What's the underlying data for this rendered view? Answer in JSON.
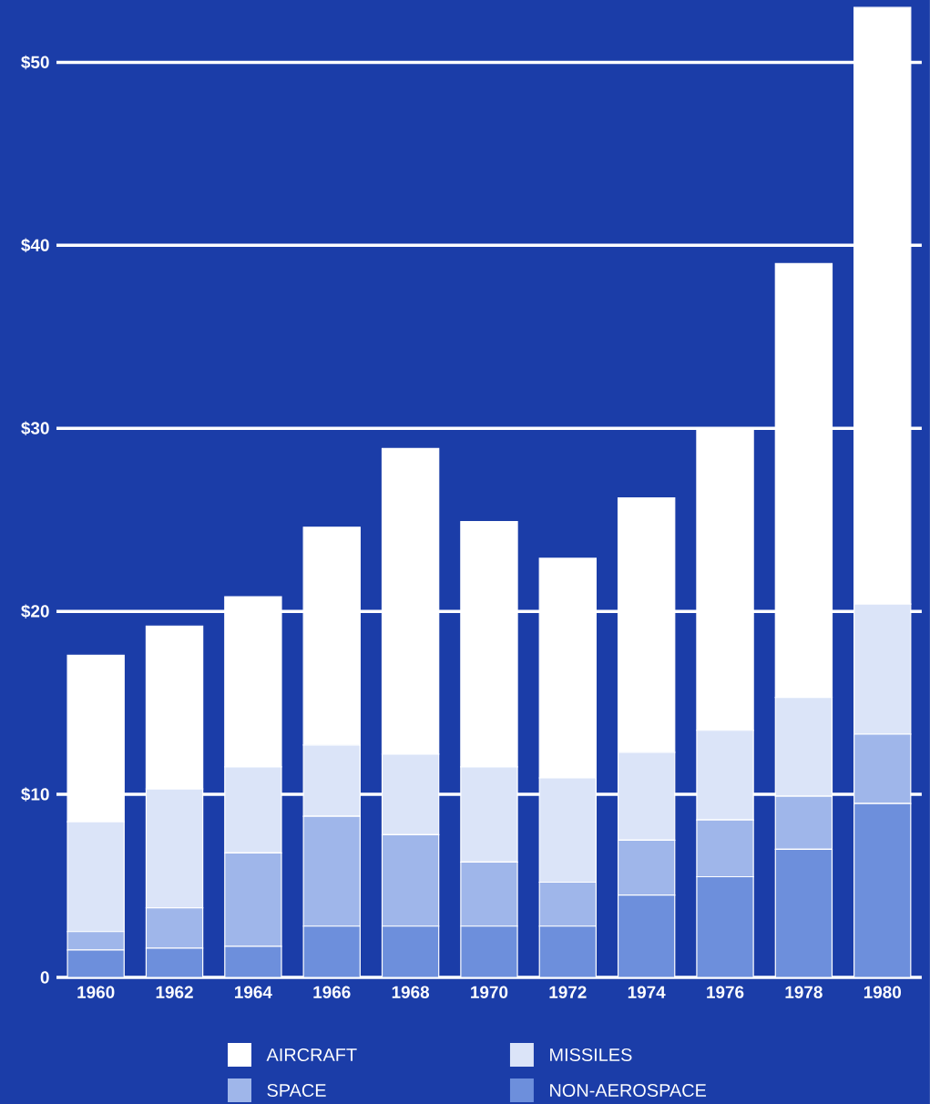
{
  "chart_data": {
    "type": "bar",
    "stacked": true,
    "categories": [
      "1960",
      "1962",
      "1964",
      "1966",
      "1968",
      "1970",
      "1972",
      "1974",
      "1976",
      "1978",
      "1980"
    ],
    "series": [
      {
        "name": "NON-AEROSPACE",
        "color": "#6d8fdc",
        "values": [
          1.5,
          1.6,
          1.7,
          2.8,
          2.8,
          2.8,
          2.8,
          4.5,
          5.5,
          7.0,
          9.5
        ]
      },
      {
        "name": "SPACE",
        "color": "#9fb6ea",
        "values": [
          1.0,
          2.2,
          5.1,
          6.0,
          5.0,
          3.5,
          2.4,
          3.0,
          3.1,
          2.9,
          3.8
        ]
      },
      {
        "name": "MISSILES",
        "color": "#dbe4f8",
        "values": [
          6.0,
          6.5,
          4.7,
          3.9,
          4.4,
          5.2,
          5.7,
          4.8,
          4.9,
          5.4,
          7.1
        ]
      },
      {
        "name": "AIRCRAFT",
        "color": "#ffffff",
        "values": [
          9.1,
          8.9,
          9.3,
          11.9,
          16.7,
          13.4,
          12.0,
          13.9,
          16.5,
          23.7,
          32.6
        ]
      }
    ],
    "ylim": [
      0,
      53.4
    ],
    "yticks": [
      {
        "value": 0,
        "label": "0"
      },
      {
        "value": 10,
        "label": "$10"
      },
      {
        "value": 20,
        "label": "$20"
      },
      {
        "value": 30,
        "label": "$30"
      },
      {
        "value": 40,
        "label": "$40"
      },
      {
        "value": 50,
        "label": "$50"
      }
    ],
    "grid": "y",
    "legend": "bottom"
  }
}
